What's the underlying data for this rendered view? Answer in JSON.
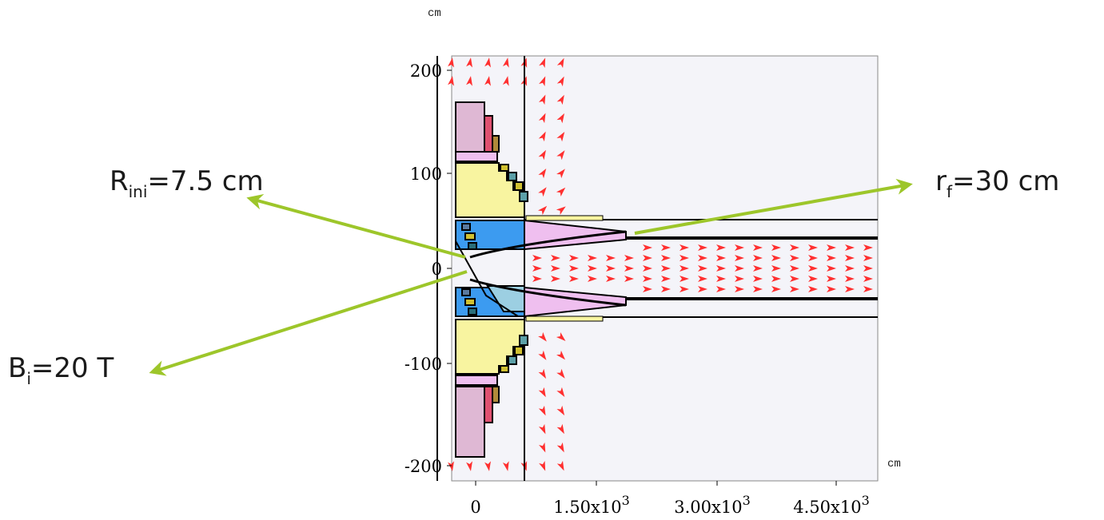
{
  "figure": {
    "unit_top": "cm",
    "unit_right": "cm",
    "y_ticks": [
      "200",
      "100",
      "0",
      "-100",
      "-200"
    ],
    "x_ticks": [
      {
        "base": "0",
        "exp": ""
      },
      {
        "base": "1.50x10",
        "exp": "3"
      },
      {
        "base": "3.00x10",
        "exp": "3"
      },
      {
        "base": "4.50x10",
        "exp": "3"
      }
    ]
  },
  "annotations": {
    "r_ini": {
      "sym": "R",
      "sub": "ini",
      "rest": "=7.5 cm"
    },
    "r_f": {
      "sym": "r",
      "sub": "f",
      "rest": "=30 cm"
    },
    "b_i": {
      "sym": "B",
      "sub": "i",
      "rest": "=20 T"
    }
  },
  "colors": {
    "arrow_field": "#ff3030",
    "annotation_arrow": "#9dc62a",
    "pink": "#dfb8d4",
    "yellow": "#f8f4a0",
    "blue": "#3c9bf0",
    "light_blue": "#9ccfe2",
    "light_pink": "#efbfef",
    "plot_bg": "#f4f4f9"
  }
}
